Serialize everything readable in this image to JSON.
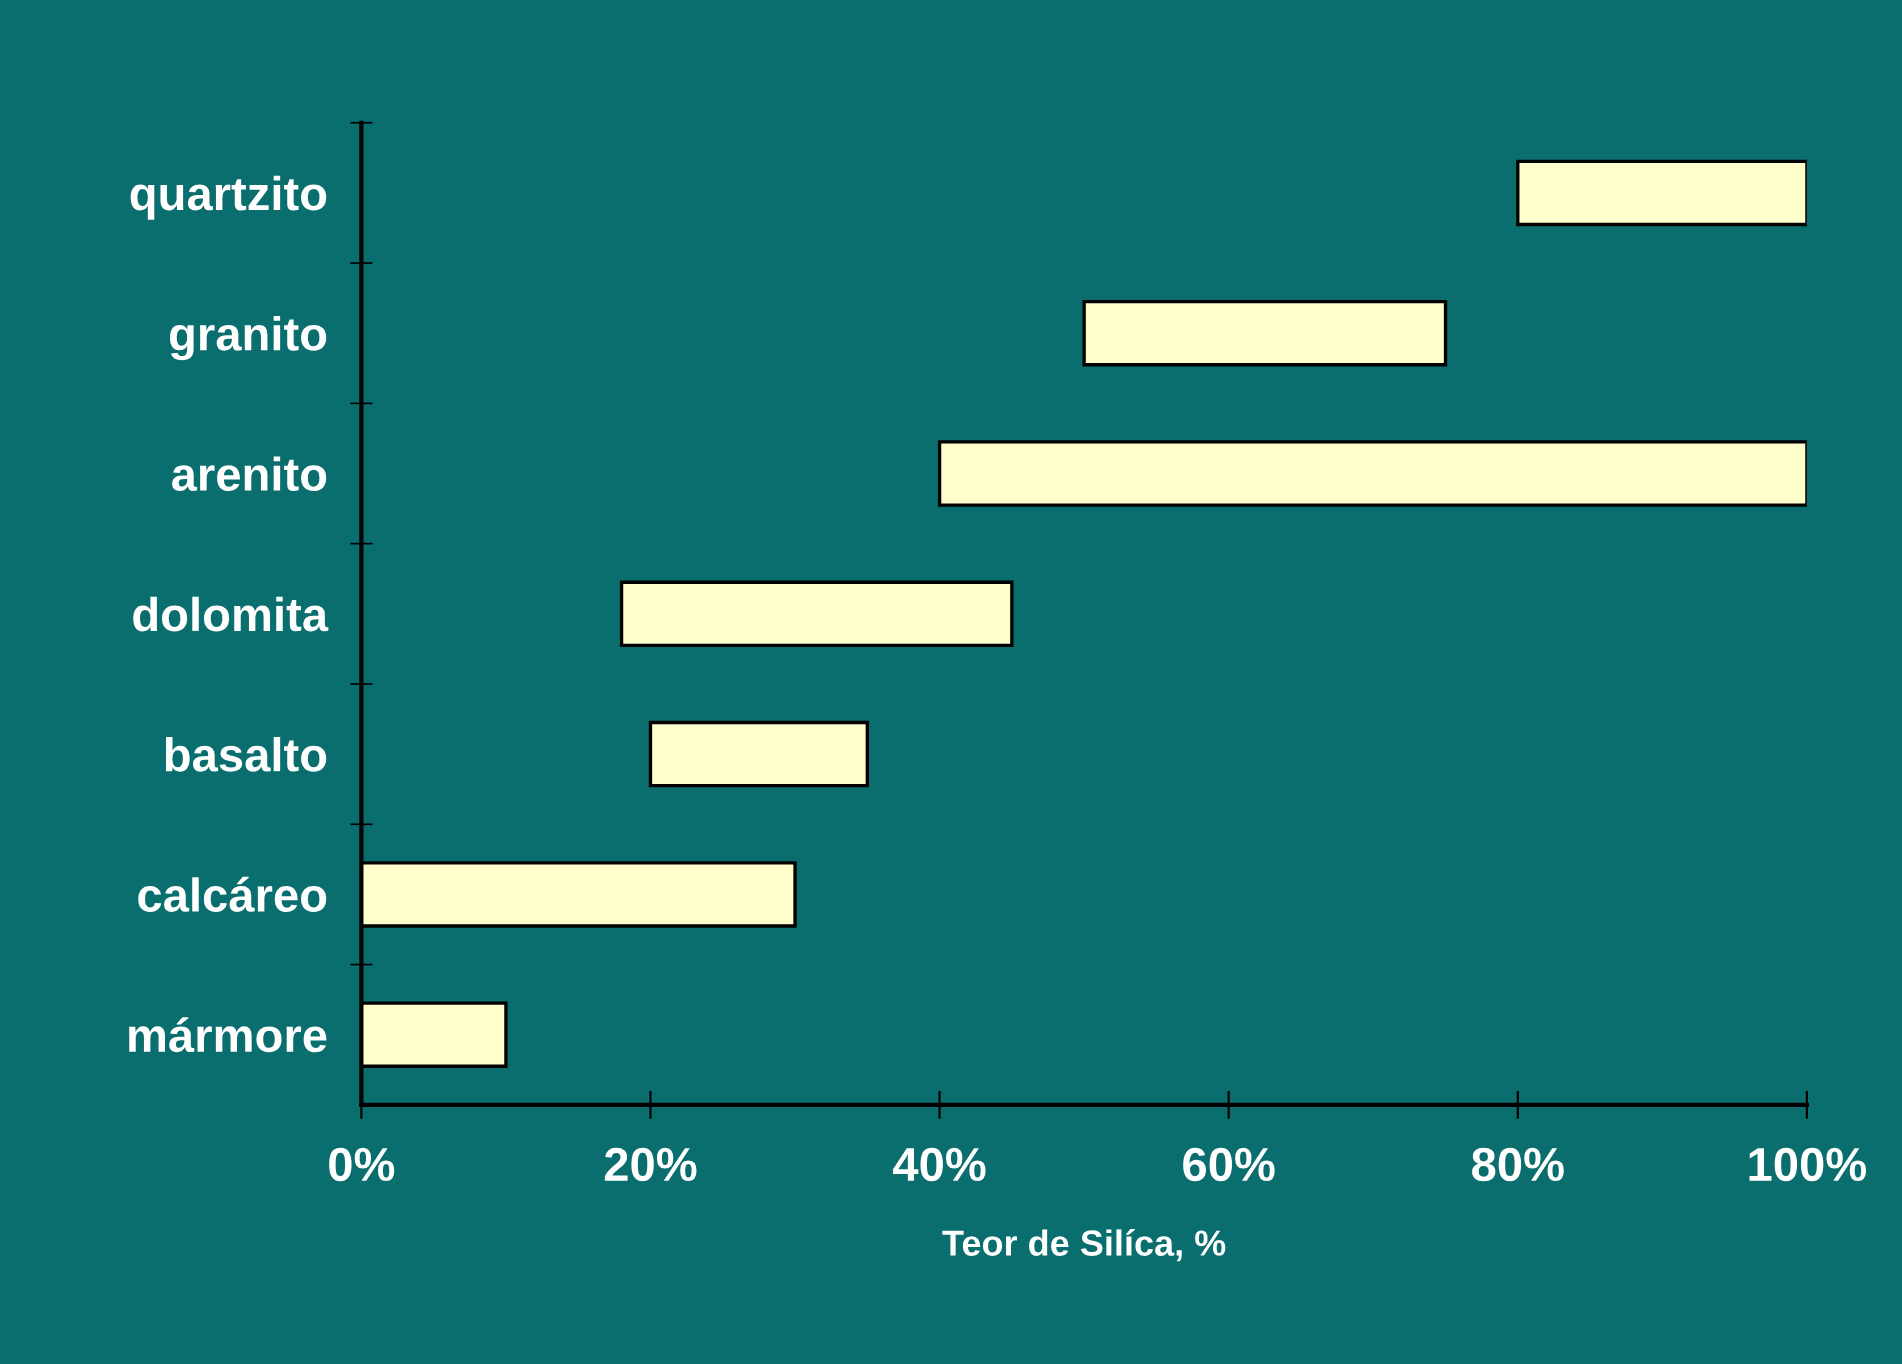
{
  "chart_data": {
    "type": "bar",
    "orientation": "horizontal",
    "xlabel": "Teor de Silíca, %",
    "categories": [
      "quartzito",
      "granito",
      "arenito",
      "dolomita",
      "basalto",
      "calcáreo",
      "mármore"
    ],
    "base": [
      80,
      50,
      40,
      18,
      20,
      0,
      0
    ],
    "values": [
      20,
      25,
      60,
      27,
      15,
      30,
      10
    ],
    "color": "#ffffcc",
    "xlim": [
      0,
      100
    ],
    "xticks": [
      {
        "value": 0,
        "label": "0%"
      },
      {
        "value": 20,
        "label": "20%"
      },
      {
        "value": 40,
        "label": "40%"
      },
      {
        "value": 60,
        "label": "60%"
      },
      {
        "value": 80,
        "label": "80%"
      },
      {
        "value": 100,
        "label": "100%"
      }
    ],
    "grid": false,
    "legend": false
  }
}
